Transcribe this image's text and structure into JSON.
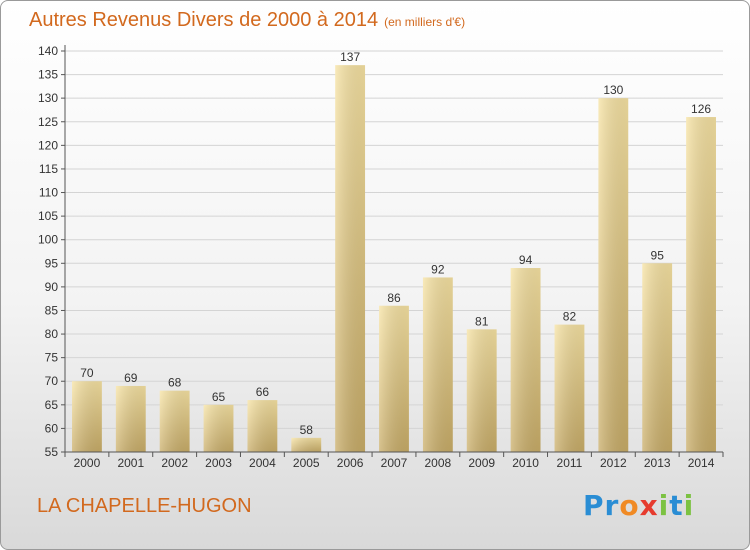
{
  "title": "Autres Revenus Divers de 2000 à 2014",
  "unit": "(en milliers d'€)",
  "commune": "LA CHAPELLE-HUGON",
  "logo": {
    "letters": [
      "P",
      "r",
      "o",
      "x",
      "i",
      "t",
      "i"
    ],
    "colors": [
      "#2a8dd4",
      "#2a8dd4",
      "#f08a24",
      "#e63b2e",
      "#7cc242",
      "#2a8dd4",
      "#7cc242"
    ]
  },
  "colors": {
    "title": "#d2691e",
    "bar": "#e8cf7f",
    "label": "#333333"
  },
  "chart_data": {
    "type": "bar",
    "categories": [
      "2000",
      "2001",
      "2002",
      "2003",
      "2004",
      "2005",
      "2006",
      "2007",
      "2008",
      "2009",
      "2010",
      "2011",
      "2012",
      "2013",
      "2014"
    ],
    "values": [
      70,
      69,
      68,
      65,
      66,
      58,
      137,
      86,
      92,
      81,
      94,
      82,
      130,
      95,
      126
    ],
    "ylim": [
      55,
      140
    ],
    "yticks": [
      55,
      60,
      65,
      70,
      75,
      80,
      85,
      90,
      95,
      100,
      105,
      110,
      115,
      120,
      125,
      130,
      135,
      140
    ],
    "grid": true
  }
}
